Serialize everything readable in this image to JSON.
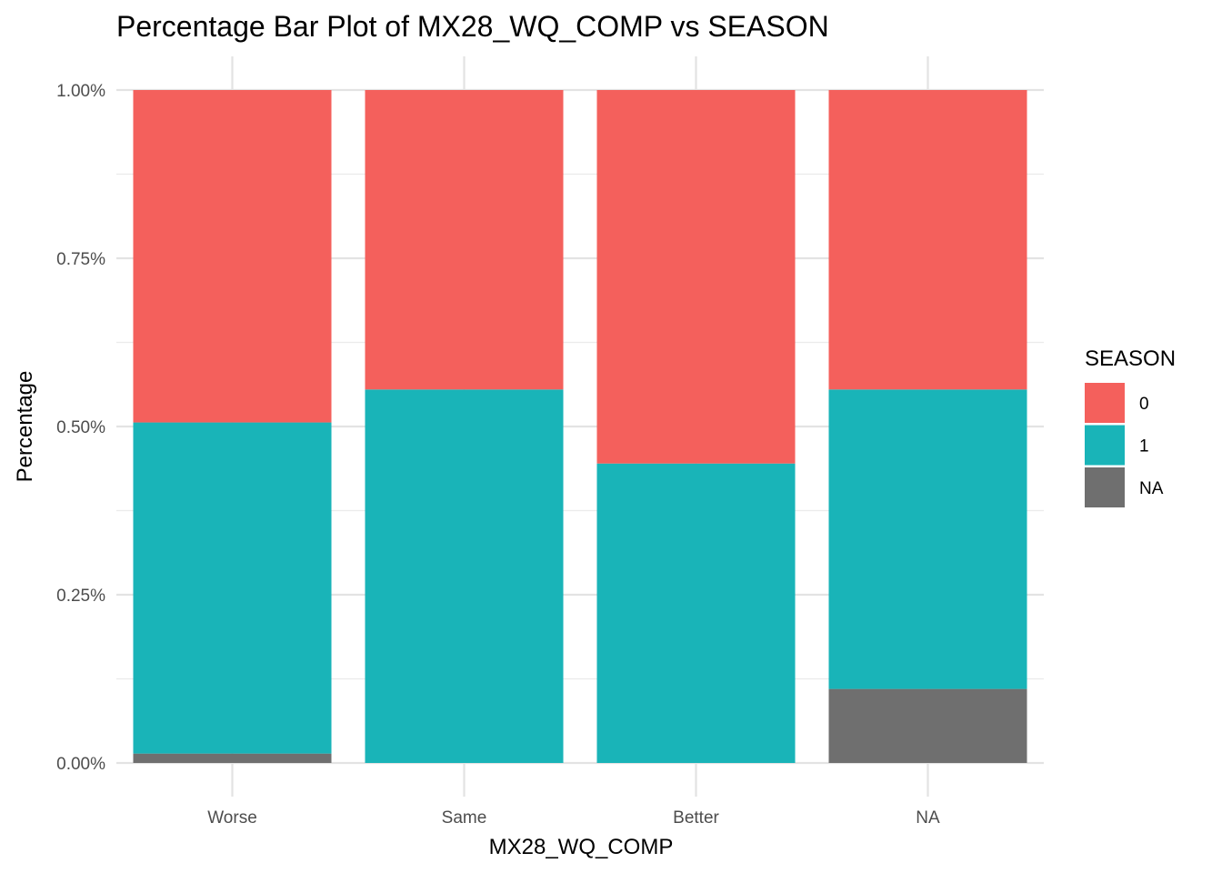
{
  "chart_data": {
    "type": "bar",
    "stacked": true,
    "title": "Percentage Bar Plot of MX28_WQ_COMP vs SEASON",
    "xlabel": "MX28_WQ_COMP",
    "ylabel": "Percentage",
    "categories": [
      "Worse",
      "Same",
      "Better",
      "NA"
    ],
    "y_ticks": [
      "0.00%",
      "0.25%",
      "0.50%",
      "0.75%",
      "1.00%"
    ],
    "ylim": [
      0,
      1
    ],
    "grid": true,
    "legend": {
      "title": "SEASON",
      "position": "right"
    },
    "series": [
      {
        "name": "NA",
        "color": "#6f6f6f",
        "values": [
          0.014,
          0.0,
          0.0,
          0.11
        ]
      },
      {
        "name": "1",
        "color": "#19b4b8",
        "values": [
          0.492,
          0.555,
          0.445,
          0.445
        ]
      },
      {
        "name": "0",
        "color": "#f4605c",
        "values": [
          0.494,
          0.445,
          0.555,
          0.445
        ]
      }
    ],
    "legend_order": [
      "0",
      "1",
      "NA"
    ]
  }
}
